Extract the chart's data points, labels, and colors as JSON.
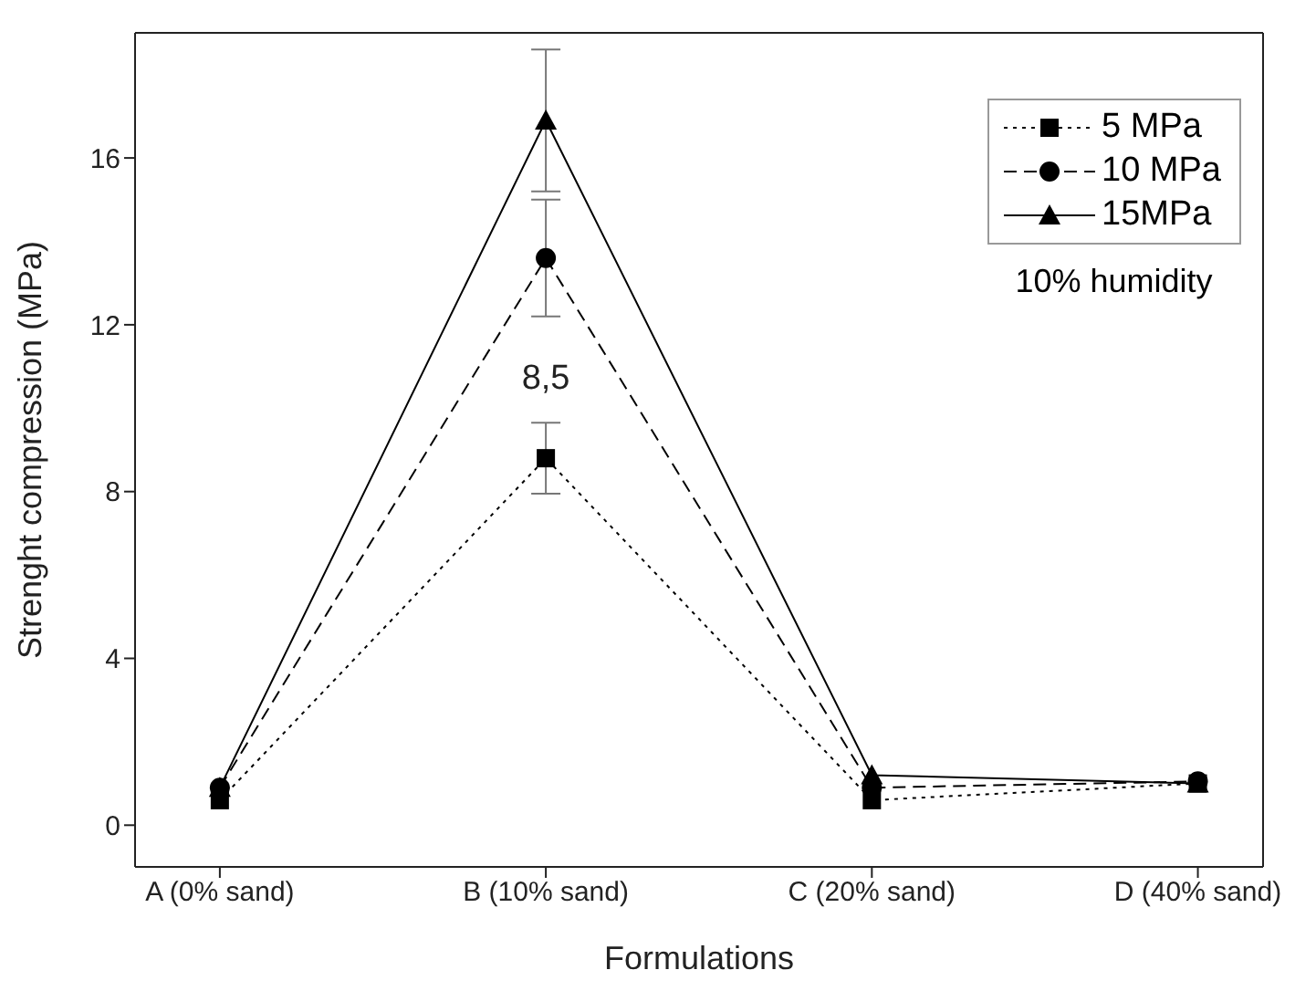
{
  "chart_data": {
    "type": "line",
    "xlabel": "Formulations",
    "ylabel": "Strenght compression (MPa)",
    "categories": [
      "A (0% sand)",
      "B (10% sand)",
      "C (20%  sand)",
      "D (40% sand)"
    ],
    "ylim": [
      -1,
      19
    ],
    "yticks": [
      0,
      4,
      8,
      12,
      16
    ],
    "grid": false,
    "legend": "top right",
    "series": [
      {
        "name": "5 MPa",
        "color": "#000000",
        "marker": "square",
        "line_style": "dotted",
        "values": [
          0.6,
          8.8,
          0.6,
          1.0
        ],
        "errors": [
          null,
          0.85,
          null,
          null
        ]
      },
      {
        "name": "10 MPa",
        "color": "#000000",
        "marker": "circle",
        "line_style": "dashed",
        "values": [
          0.9,
          13.6,
          0.9,
          1.05
        ],
        "errors": [
          null,
          1.4,
          null,
          null
        ]
      },
      {
        "name": "15MPa",
        "color": "#000000",
        "marker": "triangle",
        "line_style": "solid",
        "values": [
          0.9,
          16.9,
          1.2,
          1.0
        ],
        "errors": [
          null,
          1.7,
          null,
          null
        ]
      }
    ],
    "annotations": [
      {
        "text": "8,5",
        "x": "B (10% sand)",
        "y": 8.8
      },
      "10% humidity"
    ]
  }
}
